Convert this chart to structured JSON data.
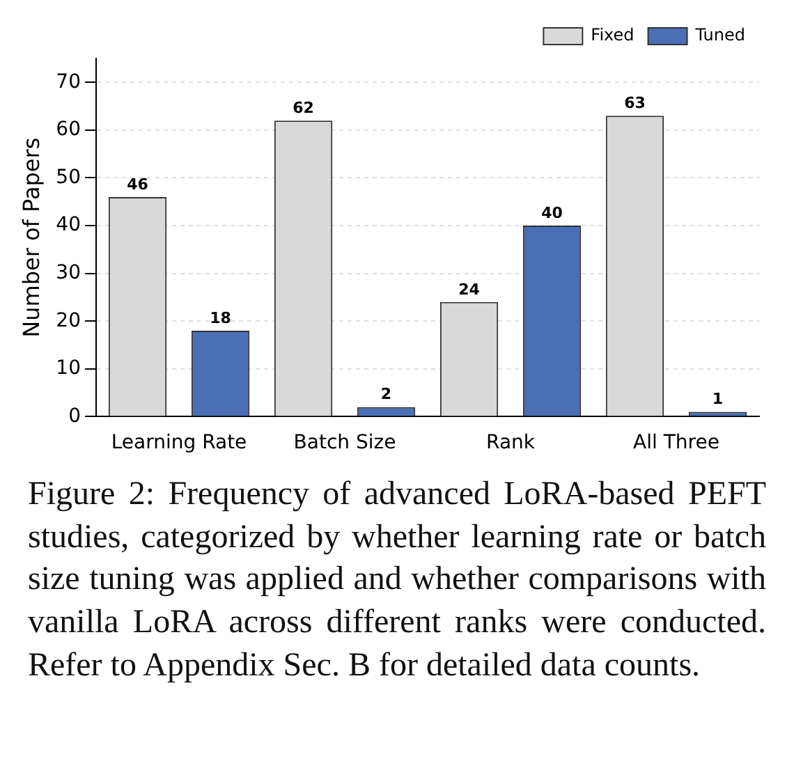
{
  "chart_data": {
    "type": "bar",
    "ylabel": "Number of Papers",
    "categories": [
      "Learning Rate",
      "Batch Size",
      "Rank",
      "All Three"
    ],
    "series": [
      {
        "name": "Fixed",
        "color": "#d9d9d9",
        "values": [
          46,
          62,
          24,
          63
        ]
      },
      {
        "name": "Tuned",
        "color": "#4a6fb5",
        "values": [
          18,
          2,
          40,
          1
        ]
      }
    ],
    "ylim": [
      0,
      75
    ],
    "yticks": [
      0,
      10,
      20,
      30,
      40,
      50,
      60,
      70
    ],
    "grid": "y",
    "legend": "top right",
    "data_labels": true,
    "annotations": [
      "Figure 2:  Frequency of advanced LoRA-based PEFT studies, categorized by whether learning rate or batch size tuning was applied and whether comparisons with vanilla LoRA across different ranks were conducted. Refer to Appendix Sec. B for detailed data counts."
    ]
  }
}
